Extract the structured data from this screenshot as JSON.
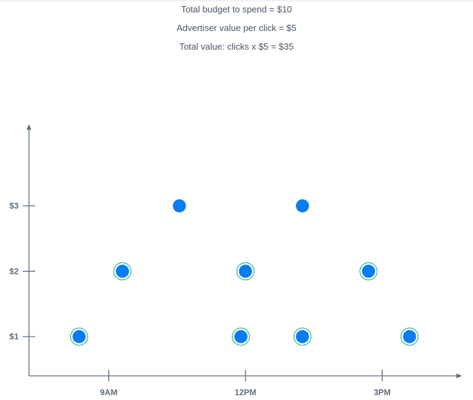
{
  "summary": {
    "line1": "Total budget to spend = $10",
    "line2": "Advertiser value per click = $5",
    "line3": "Total value: clicks x $5 = $35"
  },
  "colors": {
    "point": "#0a7cf2",
    "highlight_ring": "#3cc083",
    "axis": "#5c6f80",
    "text": "#4a5563"
  },
  "chart_data": {
    "type": "scatter",
    "x_ticks": [
      {
        "label": "9AM",
        "value": 9
      },
      {
        "label": "12PM",
        "value": 12
      },
      {
        "label": "3PM",
        "value": 15
      }
    ],
    "y_ticks": [
      {
        "label": "$1",
        "value": 1
      },
      {
        "label": "$2",
        "value": 2
      },
      {
        "label": "$3",
        "value": 3
      }
    ],
    "xlim": [
      7.25,
      16.75
    ],
    "ylim": [
      0.4,
      4.25
    ],
    "grid": false,
    "points": [
      {
        "x": 8.35,
        "y": 1,
        "highlighted": true
      },
      {
        "x": 9.3,
        "y": 2,
        "highlighted": true
      },
      {
        "x": 10.55,
        "y": 3,
        "highlighted": false
      },
      {
        "x": 11.9,
        "y": 1,
        "highlighted": true
      },
      {
        "x": 12.0,
        "y": 2,
        "highlighted": true
      },
      {
        "x": 13.25,
        "y": 3,
        "highlighted": false
      },
      {
        "x": 13.25,
        "y": 1,
        "highlighted": true
      },
      {
        "x": 14.7,
        "y": 2,
        "highlighted": true
      },
      {
        "x": 15.6,
        "y": 1,
        "highlighted": true
      }
    ]
  }
}
